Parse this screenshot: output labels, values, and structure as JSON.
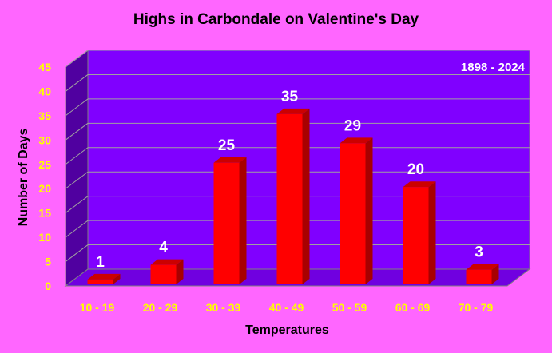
{
  "chart_data": {
    "type": "bar",
    "title": "Highs in Carbondale on Valentine's Day",
    "annotation": "1898 - 2024",
    "xlabel": "Temperatures",
    "ylabel": "Number of Days",
    "categories": [
      "10 - 19",
      "20 - 29",
      "30 - 39",
      "40 - 49",
      "50 - 59",
      "60 - 69",
      "70 - 79"
    ],
    "values": [
      1,
      4,
      25,
      35,
      29,
      20,
      3
    ],
    "yticks": [
      0,
      5,
      10,
      15,
      20,
      25,
      30,
      35,
      40,
      45
    ],
    "ylim": [
      0,
      45
    ],
    "grid": true,
    "colors": {
      "background": "#ff66ff",
      "plot_back": "#8000ff",
      "plot_side": "#5000a0",
      "plot_floor": "#7000e0",
      "bar_front": "#ff0000",
      "bar_top": "#cc0000",
      "bar_side": "#a80000",
      "tick_label": "#ffff00",
      "data_label": "#ffffff",
      "grid": "#a0a0a0"
    }
  }
}
